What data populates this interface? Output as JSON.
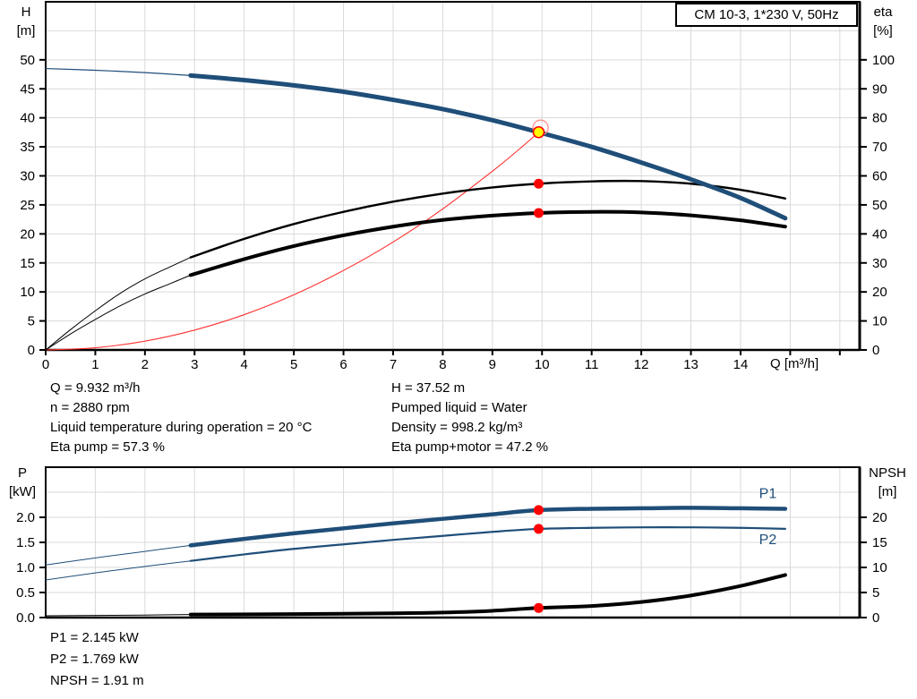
{
  "title_box": {
    "label": "CM 10-3, 1*230 V, 50Hz"
  },
  "annotations": {
    "left": [
      "Q = 9.932 m³/h",
      "n = 2880 rpm",
      "Liquid temperature during operation = 20 °C",
      "Eta pump = 57.3 %"
    ],
    "right": [
      "H = 37.52 m",
      "Pumped liquid = Water",
      "Density = 998.2 kg/m³",
      "Eta pump+motor = 47.2 %"
    ],
    "bottom": [
      "P1 = 2.145 kW",
      "P2 = 1.769 kW",
      "NPSH = 1.91 m"
    ]
  },
  "colors": {
    "curve_blue": "#1F4E79",
    "curve_black": "#000000",
    "curve_red": "#FF3030",
    "dot_red": "#FF0000",
    "dot_yellow": "#FFFF00",
    "ring_red": "#FF9090",
    "grid": "#D9D9D9",
    "axis": "#000000",
    "label_blue": "#1F4E79"
  },
  "chart_data": [
    {
      "type": "line",
      "title": "CM 10-3, 1*230 V, 50Hz",
      "x_axis": {
        "label": "Q [m³/h]",
        "min": 0,
        "max": 16.4,
        "tick_step": 1,
        "label_max": 14,
        "tick_decimals": 0
      },
      "y_left": {
        "label": "H",
        "unit": "[m]",
        "min": 0,
        "max": 60,
        "tick_step": 5,
        "label_max": 50,
        "tick_decimals": 0
      },
      "y_right": {
        "label": "eta",
        "unit": "[%]",
        "min": 0,
        "max": 120,
        "tick_step": 10,
        "label_max": 100,
        "tick_decimals": 0
      },
      "grid": true,
      "series": [
        {
          "name": "system-curve",
          "axis": "left",
          "color_key": "curve_red",
          "thin_width": 1.1,
          "thick_width": 1.1,
          "thin": [],
          "thick": [
            [
              0,
              0
            ],
            [
              1,
              0.38
            ],
            [
              2,
              1.52
            ],
            [
              3,
              3.42
            ],
            [
              4,
              6.08
            ],
            [
              5,
              9.5
            ],
            [
              6,
              13.7
            ],
            [
              7,
              18.6
            ],
            [
              8,
              24.3
            ],
            [
              9,
              30.8
            ],
            [
              9.5,
              34.3
            ],
            [
              9.932,
              37.52
            ]
          ]
        },
        {
          "name": "eta-pump",
          "axis": "right",
          "color_key": "curve_black",
          "thin_width": 1,
          "thick_width": 2.4,
          "thin": [
            [
              0,
              0
            ],
            [
              0.5,
              7
            ],
            [
              1,
              13.5
            ],
            [
              1.5,
              19.5
            ],
            [
              2,
              24.5
            ],
            [
              2.5,
              28.6
            ],
            [
              2.92,
              31.9
            ]
          ],
          "thick": [
            [
              2.92,
              31.9
            ],
            [
              4,
              38.3
            ],
            [
              5,
              43.4
            ],
            [
              6,
              47.6
            ],
            [
              7,
              51.1
            ],
            [
              8,
              53.9
            ],
            [
              9,
              56.0
            ],
            [
              9.932,
              57.3
            ],
            [
              11,
              58.1
            ],
            [
              12,
              58.2
            ],
            [
              13,
              57.3
            ],
            [
              14,
              55.2
            ],
            [
              14.9,
              52.2
            ]
          ]
        },
        {
          "name": "eta-pump-motor",
          "axis": "right",
          "color_key": "curve_black",
          "thin_width": 1,
          "thick_width": 4,
          "thin": [
            [
              0,
              0
            ],
            [
              0.5,
              5.5
            ],
            [
              1,
              10.5
            ],
            [
              1.5,
              15.2
            ],
            [
              2,
              19.3
            ],
            [
              2.5,
              22.8
            ],
            [
              2.92,
              25.8
            ]
          ],
          "thick": [
            [
              2.92,
              25.8
            ],
            [
              4,
              31.3
            ],
            [
              5,
              35.8
            ],
            [
              6,
              39.5
            ],
            [
              7,
              42.5
            ],
            [
              8,
              44.8
            ],
            [
              9,
              46.3
            ],
            [
              9.932,
              47.2
            ],
            [
              11,
              47.6
            ],
            [
              12,
              47.4
            ],
            [
              13,
              46.4
            ],
            [
              14,
              44.7
            ],
            [
              14.9,
              42.5
            ]
          ]
        },
        {
          "name": "head",
          "axis": "left",
          "color_key": "curve_blue",
          "thin_width": 1.2,
          "thick_width": 5,
          "thin": [
            [
              0,
              48.5
            ],
            [
              1,
              48.2
            ],
            [
              2,
              47.8
            ],
            [
              2.92,
              47.3
            ]
          ],
          "thick": [
            [
              2.92,
              47.3
            ],
            [
              4,
              46.5
            ],
            [
              5,
              45.6
            ],
            [
              6,
              44.5
            ],
            [
              7,
              43.1
            ],
            [
              8,
              41.5
            ],
            [
              9,
              39.6
            ],
            [
              9.932,
              37.52
            ],
            [
              11,
              35.0
            ],
            [
              12,
              32.3
            ],
            [
              13,
              29.4
            ],
            [
              14,
              26.2
            ],
            [
              14.9,
              22.7
            ]
          ]
        }
      ],
      "markers": [
        {
          "kind": "ring",
          "axis": "left",
          "x": 9.97,
          "y": 38.3,
          "r": 8.5
        },
        {
          "kind": "duty-point",
          "axis": "left",
          "x": 9.932,
          "y": 37.52,
          "r": 6
        },
        {
          "kind": "dot",
          "axis": "right",
          "x": 9.932,
          "y": 57.3,
          "r": 5.5
        },
        {
          "kind": "dot",
          "axis": "right",
          "x": 9.932,
          "y": 47.2,
          "r": 5.5
        }
      ],
      "curve_labels": []
    },
    {
      "type": "line",
      "title": "",
      "x_axis": {
        "label": "",
        "min": 0,
        "max": 16.4,
        "tick_step": 1,
        "label_max": -1,
        "tick_decimals": 0
      },
      "y_left": {
        "label": "P",
        "unit": "[kW]",
        "min": 0,
        "max": 3.0,
        "tick_step": 0.5,
        "label_max": 2.0,
        "tick_decimals": 1
      },
      "y_right": {
        "label": "NPSH",
        "unit": "[m]",
        "min": 0,
        "max": 30,
        "tick_step": 5,
        "label_max": 20,
        "tick_decimals": 0
      },
      "grid": true,
      "series": [
        {
          "name": "npsh",
          "axis": "right",
          "color_key": "curve_black",
          "thin_width": 1,
          "thick_width": 4,
          "thin": [
            [
              0,
              0.35
            ],
            [
              1,
              0.42
            ],
            [
              2,
              0.5
            ],
            [
              2.92,
              0.6
            ]
          ],
          "thick": [
            [
              2.92,
              0.6
            ],
            [
              5,
              0.7
            ],
            [
              7,
              0.85
            ],
            [
              8,
              1.0
            ],
            [
              9,
              1.35
            ],
            [
              9.932,
              1.91
            ],
            [
              11,
              2.3
            ],
            [
              12,
              3.1
            ],
            [
              13,
              4.4
            ],
            [
              14,
              6.3
            ],
            [
              14.9,
              8.5
            ]
          ]
        },
        {
          "name": "p2",
          "axis": "left",
          "color_key": "curve_blue",
          "thin_width": 1,
          "thick_width": 2.2,
          "thin": [
            [
              0,
              0.75
            ],
            [
              1,
              0.89
            ],
            [
              2,
              1.02
            ],
            [
              2.92,
              1.13
            ]
          ],
          "thick": [
            [
              2.92,
              1.13
            ],
            [
              4,
              1.26
            ],
            [
              5,
              1.37
            ],
            [
              6,
              1.46
            ],
            [
              7,
              1.55
            ],
            [
              8,
              1.63
            ],
            [
              9,
              1.71
            ],
            [
              9.932,
              1.769
            ],
            [
              11,
              1.79
            ],
            [
              12,
              1.8
            ],
            [
              13,
              1.8
            ],
            [
              14,
              1.79
            ],
            [
              14.9,
              1.77
            ]
          ]
        },
        {
          "name": "p1",
          "axis": "left",
          "color_key": "curve_blue",
          "thin_width": 1,
          "thick_width": 4.5,
          "thin": [
            [
              0,
              1.05
            ],
            [
              1,
              1.19
            ],
            [
              2,
              1.32
            ],
            [
              2.92,
              1.44
            ]
          ],
          "thick": [
            [
              2.92,
              1.44
            ],
            [
              4,
              1.57
            ],
            [
              5,
              1.68
            ],
            [
              6,
              1.78
            ],
            [
              7,
              1.88
            ],
            [
              8,
              1.97
            ],
            [
              9,
              2.06
            ],
            [
              9.932,
              2.145
            ],
            [
              11,
              2.17
            ],
            [
              12,
              2.18
            ],
            [
              13,
              2.19
            ],
            [
              14,
              2.18
            ],
            [
              14.9,
              2.17
            ]
          ]
        }
      ],
      "markers": [
        {
          "kind": "dot",
          "axis": "left",
          "x": 9.932,
          "y": 2.145,
          "r": 5.5
        },
        {
          "kind": "dot",
          "axis": "left",
          "x": 9.932,
          "y": 1.769,
          "r": 5.5
        },
        {
          "kind": "dot",
          "axis": "right",
          "x": 9.932,
          "y": 1.91,
          "r": 5.5
        }
      ],
      "curve_labels": [
        {
          "text": "P1",
          "x": 14.55,
          "y": 2.47
        },
        {
          "text": "P2",
          "x": 14.55,
          "y": 1.55
        }
      ]
    }
  ]
}
